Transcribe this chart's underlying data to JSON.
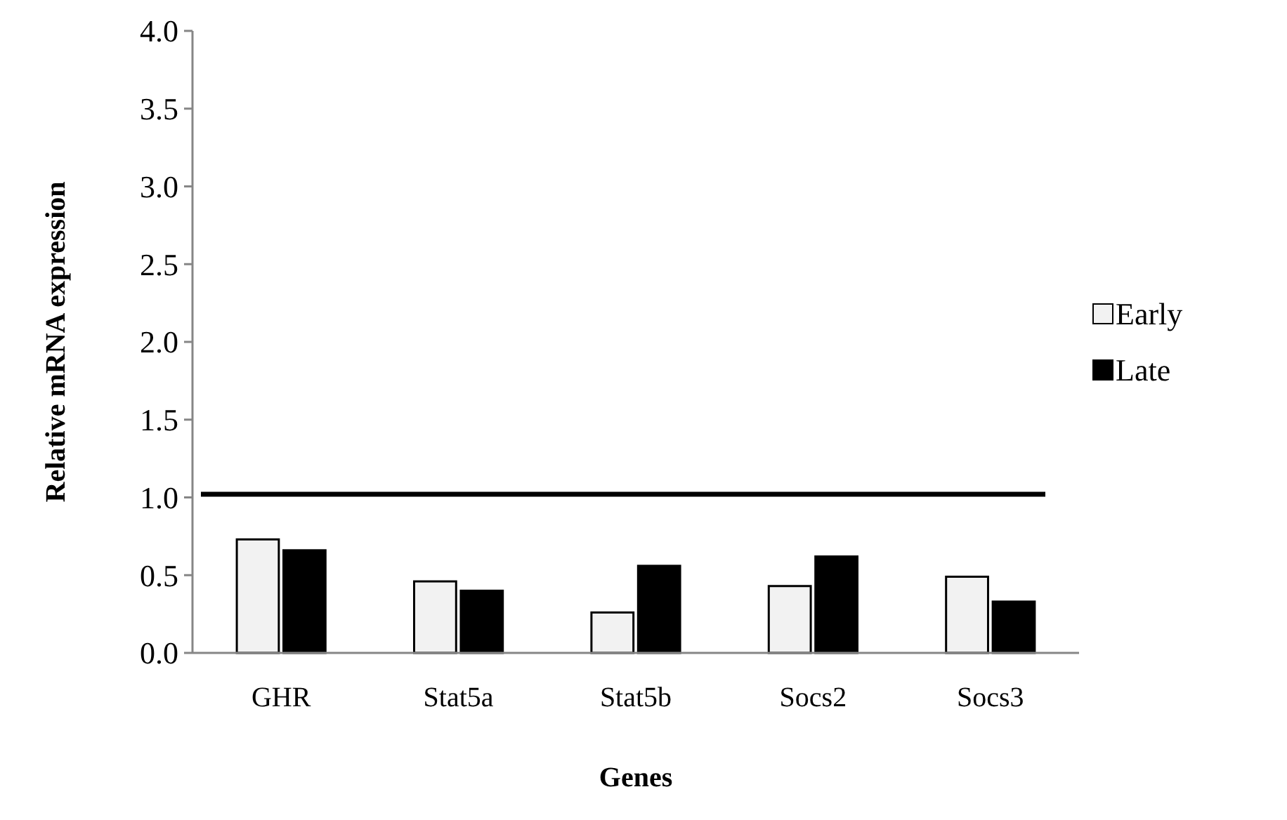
{
  "chart_data": {
    "type": "bar",
    "xlabel": "Genes",
    "ylabel": "Relative mRNA expression",
    "categories": [
      "GHR",
      "Stat5a",
      "Stat5b",
      "Socs2",
      "Socs3"
    ],
    "series": [
      {
        "name": "Early",
        "color": "#f2f2f2",
        "values": [
          0.73,
          0.46,
          0.26,
          0.43,
          0.49
        ]
      },
      {
        "name": "Late",
        "color": "#000000",
        "values": [
          0.66,
          0.4,
          0.56,
          0.62,
          0.33
        ]
      }
    ],
    "ylim": [
      0,
      4
    ],
    "yticks": [
      {
        "value": 0,
        "label": "0.0"
      },
      {
        "value": 0.5,
        "label": "0.5"
      },
      {
        "value": 1,
        "label": "1.0"
      },
      {
        "value": 1.5,
        "label": "1.5"
      },
      {
        "value": 2,
        "label": "2.0"
      },
      {
        "value": 2.5,
        "label": "2.5"
      },
      {
        "value": 3,
        "label": "3.0"
      },
      {
        "value": 3.5,
        "label": "3.5"
      },
      {
        "value": 4,
        "label": "4.0"
      }
    ],
    "ref_lines": [
      {
        "axis": "y",
        "value": 1.02,
        "color": "#000000"
      }
    ],
    "legend": "right"
  }
}
